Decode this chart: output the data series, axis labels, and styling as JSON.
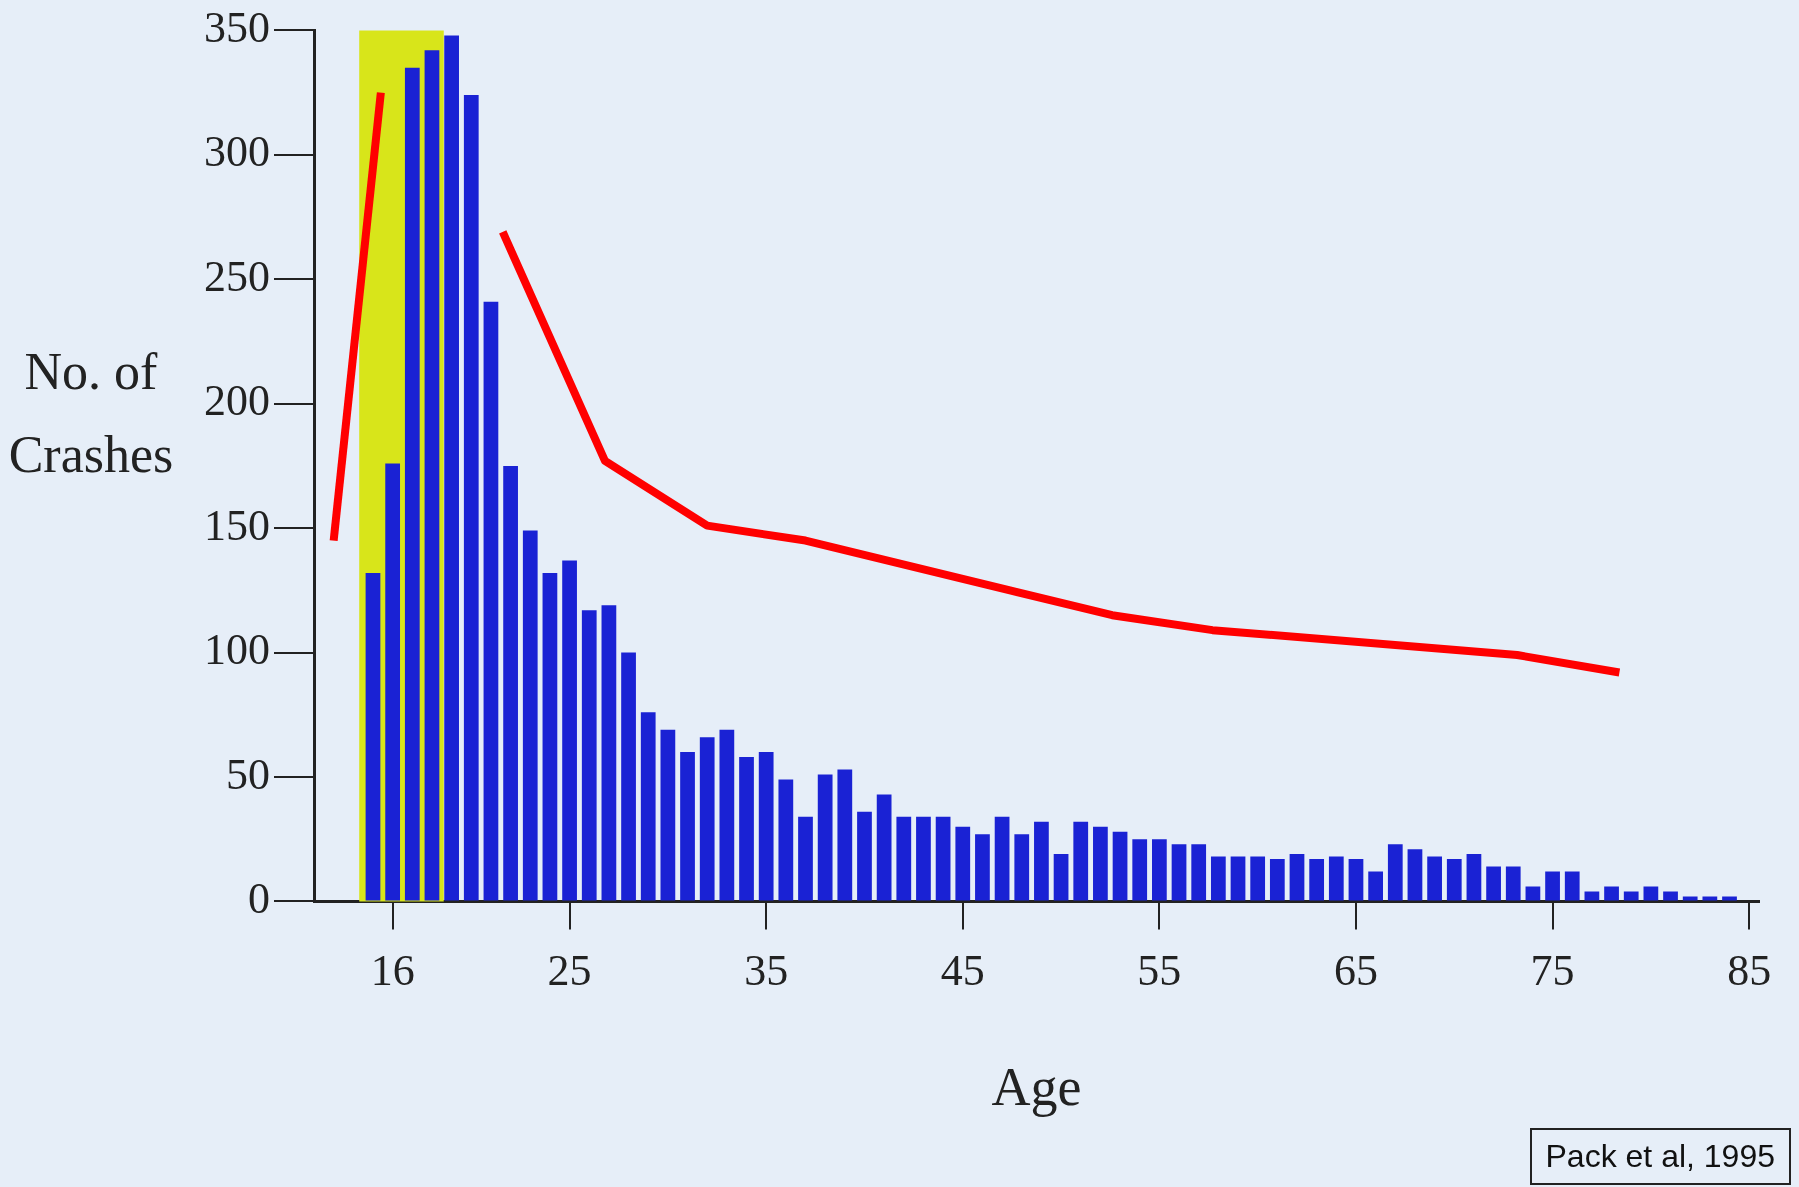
{
  "chart_data": {
    "type": "bar",
    "xlabel": "Age",
    "ylabel": "No. of Crashes",
    "x": [
      15,
      16,
      17,
      18,
      19,
      20,
      21,
      22,
      23,
      24,
      25,
      26,
      27,
      28,
      29,
      30,
      31,
      32,
      33,
      34,
      35,
      36,
      37,
      38,
      39,
      40,
      41,
      42,
      43,
      44,
      45,
      46,
      47,
      48,
      49,
      50,
      51,
      52,
      53,
      54,
      55,
      56,
      57,
      58,
      59,
      60,
      61,
      62,
      63,
      64,
      65,
      66,
      67,
      68,
      69,
      70,
      71,
      72,
      73,
      74,
      75,
      76,
      77,
      78,
      79,
      80,
      81,
      82,
      83,
      84
    ],
    "series": [
      {
        "color": "#1a22d4",
        "values": [
          132,
          176,
          335,
          342,
          348,
          324,
          241,
          175,
          149,
          132,
          137,
          117,
          119,
          100,
          76,
          69,
          60,
          66,
          69,
          58,
          60,
          49,
          34,
          51,
          53,
          36,
          43,
          34,
          34,
          34,
          30,
          27,
          34,
          27,
          32,
          19,
          32,
          30,
          28,
          25,
          25,
          23,
          23,
          18,
          18,
          18,
          17,
          19,
          17,
          18,
          17,
          12,
          23,
          21,
          18,
          17,
          19,
          14,
          14,
          6,
          12,
          12,
          4,
          6,
          4,
          6,
          4,
          2,
          2,
          2
        ]
      },
      {
        "type": "line",
        "color": "#ff0000",
        "x": [
          13,
          15.4
        ],
        "values": [
          145,
          325
        ]
      },
      {
        "type": "line",
        "color": "#ff0000",
        "x": [
          21.6,
          26.8,
          32,
          37,
          47.4,
          52.6,
          57.7,
          73.2,
          78.4
        ],
        "values": [
          269,
          177,
          151,
          145,
          125,
          115,
          109,
          99,
          92
        ]
      }
    ],
    "marker": "none",
    "xlim": [
      12,
      85.5
    ],
    "xticks": [
      16,
      25,
      35,
      45,
      55,
      65,
      75,
      85
    ],
    "ylim": [
      0,
      350
    ],
    "yticks": [
      0,
      50,
      100,
      150,
      200,
      250,
      300,
      350
    ],
    "bands": [
      {
        "axis": "x",
        "from": 14.3,
        "to": 18.6,
        "color": "#d8e51a"
      }
    ],
    "annotations": [
      "Pack et al, 1995"
    ]
  }
}
